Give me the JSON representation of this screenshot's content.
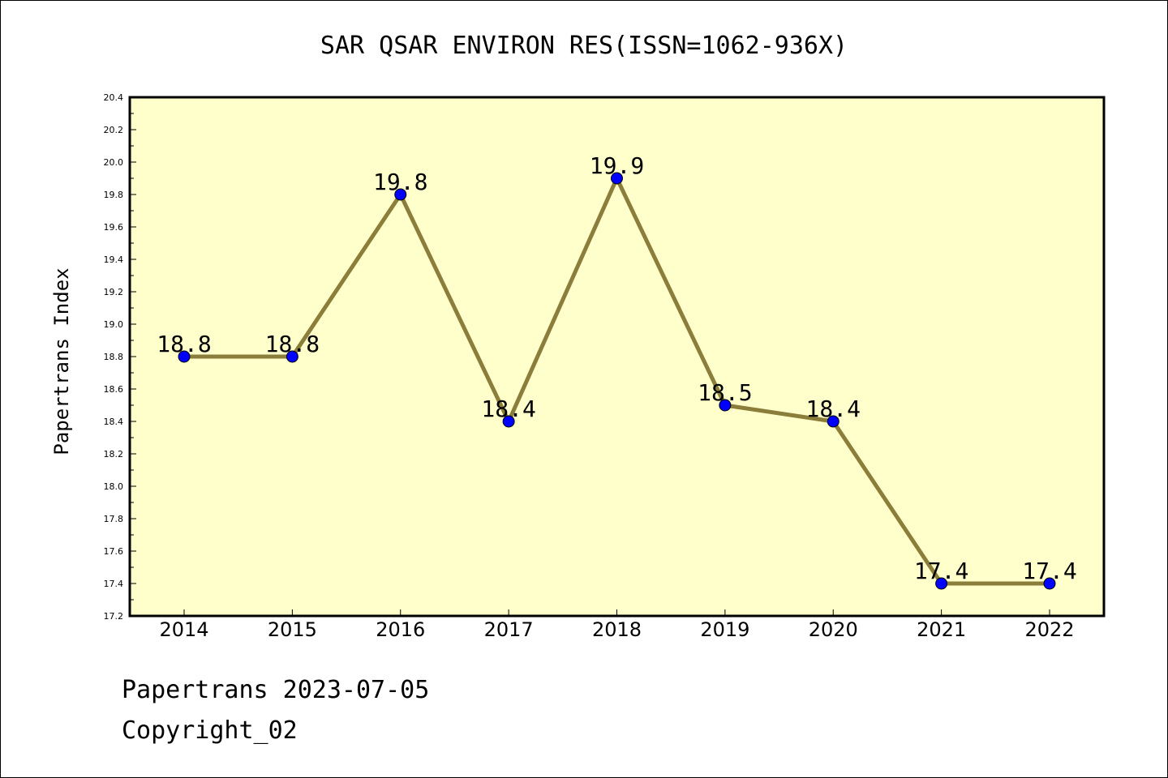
{
  "chart_data": {
    "type": "line",
    "title": "SAR QSAR ENVIRON RES(ISSN=1062-936X)",
    "xlabel": "",
    "ylabel": "Papertrans Index",
    "categories": [
      "2014",
      "2015",
      "2016",
      "2017",
      "2018",
      "2019",
      "2020",
      "2021",
      "2022"
    ],
    "series": [
      {
        "values": [
          18.8,
          18.8,
          19.8,
          18.4,
          19.9,
          18.5,
          18.4,
          17.4,
          17.4
        ],
        "data_labels": [
          "18.8",
          "18.8",
          "19.8",
          "18.4",
          "19.9",
          "18.5",
          "18.4",
          "17.4",
          "17.4"
        ]
      }
    ],
    "ylim": [
      17.2,
      20.4
    ],
    "yticks": [
      "17.2",
      "17.4",
      "17.6",
      "17.8",
      "18.0",
      "18.2",
      "18.4",
      "18.6",
      "18.8",
      "19.0",
      "19.2",
      "19.4",
      "19.6",
      "19.8",
      "20.0",
      "20.2",
      "20.4"
    ],
    "grid": false,
    "legend": "none",
    "colors": {
      "plot_background": "#ffffcc",
      "line": "#8b7d3a",
      "marker": "#0000ff"
    }
  },
  "footer": {
    "line1": "Papertrans 2023-07-05",
    "line2": "Copyright_02"
  }
}
